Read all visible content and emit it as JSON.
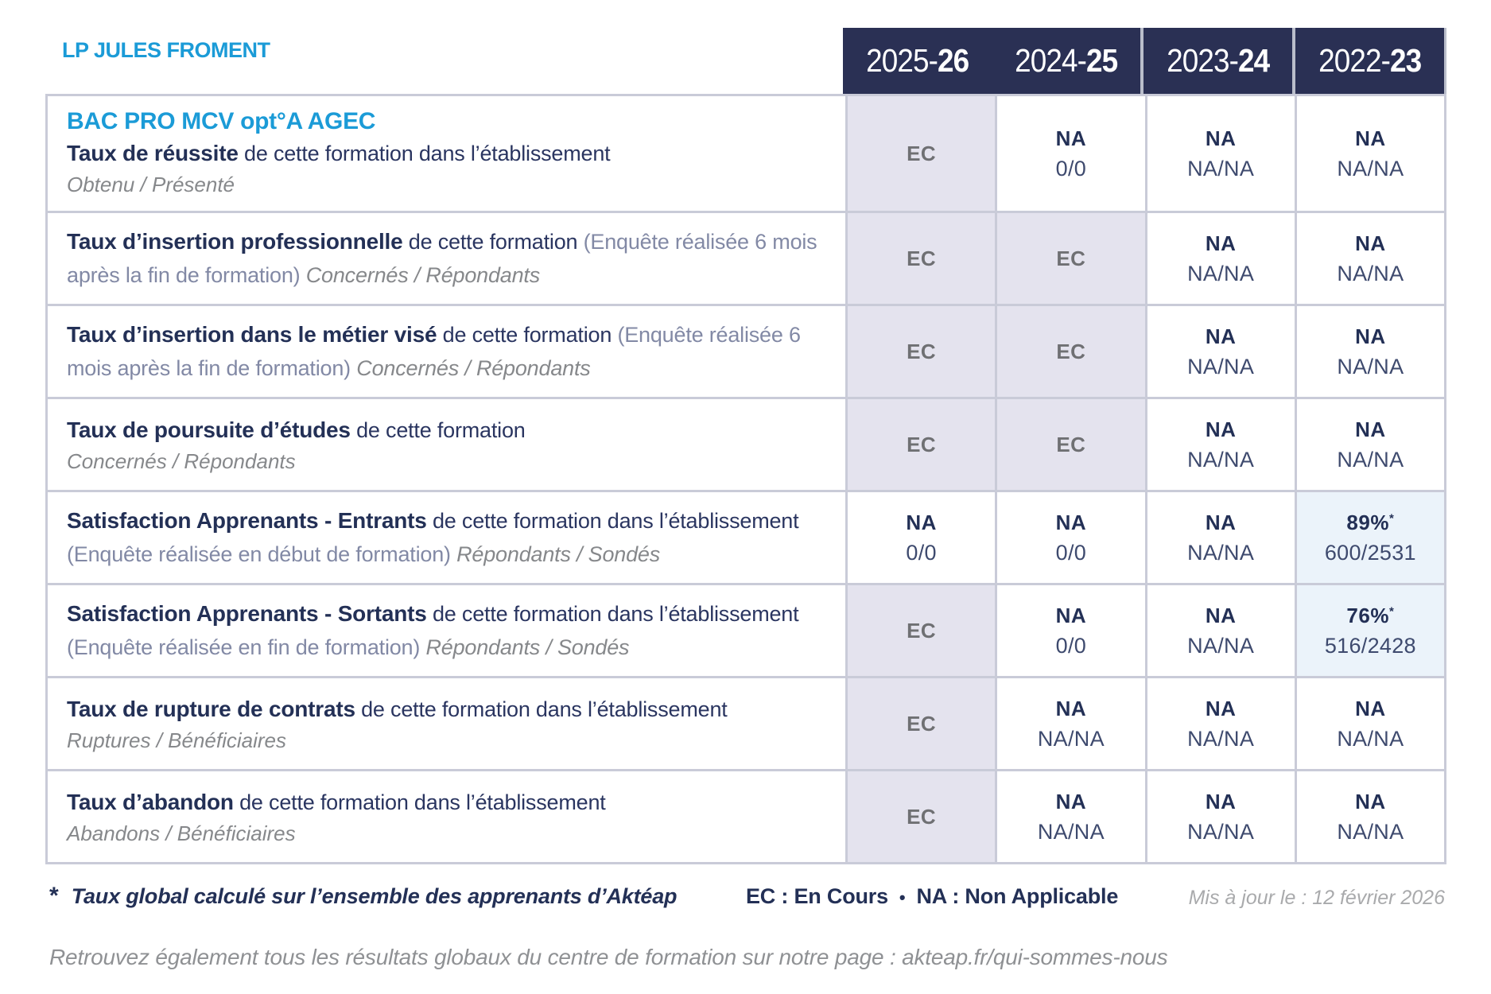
{
  "page": {
    "school_name": "LP JULES FROMENT",
    "updated": "Mis à jour le : 12 février 2026",
    "footer_link_line": "Retrouvez également tous les résultats globaux du centre de formation sur notre page : akteap.fr/qui-sommes-nous"
  },
  "colors": {
    "accent_cyan": "#1b9bd7",
    "navy": "#2a3054",
    "in_progress_cell_bg": "#e4e3ee",
    "highlight_cell_bg": "#ebf3fa",
    "grid_border": "#c9cbd8"
  },
  "footnote": {
    "star": "*",
    "text": "Taux global calculé sur l’ensemble des apprenants d’Aktéap",
    "legend_ec": "EC : En Cours",
    "bullet": "•",
    "legend_na": "NA : Non Applicable"
  },
  "table": {
    "formation_title": "BAC PRO MCV opt°A AGEC",
    "year_columns": [
      {
        "prefix": "2025-",
        "suffix": "26"
      },
      {
        "prefix": "2024-",
        "suffix": "25"
      },
      {
        "prefix": "2023-",
        "suffix": "24"
      },
      {
        "prefix": "2022-",
        "suffix": "23"
      }
    ],
    "rows": [
      {
        "label_bold": "Taux de réussite",
        "label_normal": " de cette formation dans l’établissement",
        "subline": "Obtenu / Présenté",
        "cells": [
          {
            "value": "EC"
          },
          {
            "value": "NA",
            "sub": "0/0"
          },
          {
            "value": "NA",
            "sub": "NA/NA"
          },
          {
            "value": "NA",
            "sub": "NA/NA"
          }
        ]
      },
      {
        "label_bold": "Taux d’insertion professionnelle",
        "label_normal": " de cette formation ",
        "label_note": "(Enquête réalisée 6 mois après la fin de formation) ",
        "label_tail": "Concernés / Répondants",
        "cells": [
          {
            "value": "EC"
          },
          {
            "value": "EC"
          },
          {
            "value": "NA",
            "sub": "NA/NA"
          },
          {
            "value": "NA",
            "sub": "NA/NA"
          }
        ]
      },
      {
        "label_bold": "Taux d’insertion dans le métier visé",
        "label_normal": " de cette formation ",
        "label_note": "(Enquête réalisée 6 mois après la fin de formation) ",
        "label_tail": "Concernés / Répondants",
        "cells": [
          {
            "value": "EC"
          },
          {
            "value": "EC"
          },
          {
            "value": "NA",
            "sub": "NA/NA"
          },
          {
            "value": "NA",
            "sub": "NA/NA"
          }
        ]
      },
      {
        "label_bold": "Taux de poursuite d’études",
        "label_normal": " de cette formation",
        "subline": "Concernés / Répondants",
        "cells": [
          {
            "value": "EC"
          },
          {
            "value": "EC"
          },
          {
            "value": "NA",
            "sub": "NA/NA"
          },
          {
            "value": "NA",
            "sub": "NA/NA"
          }
        ]
      },
      {
        "label_bold": "Satisfaction Apprenants - Entrants",
        "label_normal": " de cette formation dans l’établissement ",
        "label_note": "(Enquête réalisée en début de formation) ",
        "label_tail": "Répondants / Sondés",
        "cells": [
          {
            "value": "NA",
            "sub": "0/0"
          },
          {
            "value": "NA",
            "sub": "0/0"
          },
          {
            "value": "NA",
            "sub": "NA/NA"
          },
          {
            "value": "89%",
            "sup": "*",
            "sub": "600/2531"
          }
        ]
      },
      {
        "label_bold": "Satisfaction Apprenants - Sortants",
        "label_normal": " de cette formation dans l’établissement ",
        "label_note": "(Enquête réalisée en fin de formation) ",
        "label_tail": "Répondants / Sondés",
        "cells": [
          {
            "value": "EC"
          },
          {
            "value": "NA",
            "sub": "0/0"
          },
          {
            "value": "NA",
            "sub": "NA/NA"
          },
          {
            "value": "76%",
            "sup": "*",
            "sub": "516/2428"
          }
        ]
      },
      {
        "label_bold": "Taux de rupture de contrats",
        "label_normal": " de cette formation dans l’établissement",
        "subline": "Ruptures / Bénéficiaires",
        "cells": [
          {
            "value": "EC"
          },
          {
            "value": "NA",
            "sub": "NA/NA"
          },
          {
            "value": "NA",
            "sub": "NA/NA"
          },
          {
            "value": "NA",
            "sub": "NA/NA"
          }
        ]
      },
      {
        "label_bold": "Taux d’abandon",
        "label_normal": " de cette formation dans l’établissement",
        "subline": "Abandons / Bénéficiaires",
        "cells": [
          {
            "value": "EC"
          },
          {
            "value": "NA",
            "sub": "NA/NA"
          },
          {
            "value": "NA",
            "sub": "NA/NA"
          },
          {
            "value": "NA",
            "sub": "NA/NA"
          }
        ]
      }
    ]
  }
}
